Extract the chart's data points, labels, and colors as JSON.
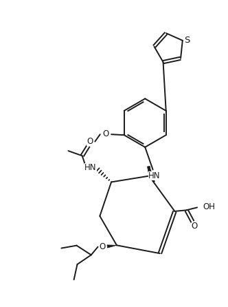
{
  "background_color": "#ffffff",
  "line_color": "#1a1a1a",
  "line_width": 1.4,
  "font_size": 8.5,
  "figsize": [
    3.32,
    4.46
  ],
  "dpi": 100,
  "xlim": [
    0,
    10
  ],
  "ylim": [
    0,
    13.5
  ]
}
